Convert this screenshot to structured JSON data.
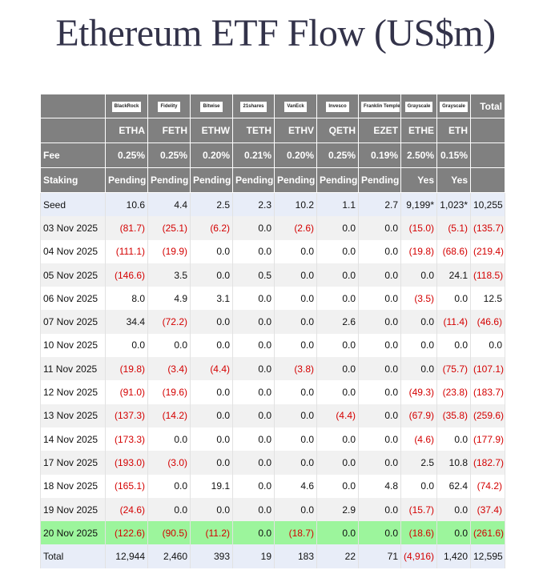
{
  "title": "Ethereum ETF Flow (US$m)",
  "table": {
    "logos": [
      "BlackRock",
      "Fidelity",
      "Bitwise",
      "21shares",
      "VanEck",
      "Invesco",
      "Franklin Templeton",
      "Grayscale",
      "Grayscale"
    ],
    "total_header": "Total",
    "tickers": [
      "ETHA",
      "FETH",
      "ETHW",
      "TETH",
      "ETHV",
      "QETH",
      "EZET",
      "ETHE",
      "ETH"
    ],
    "info_rows": [
      {
        "label": "Fee",
        "cells": [
          "0.25%",
          "0.25%",
          "0.20%",
          "0.21%",
          "0.20%",
          "0.25%",
          "0.19%",
          "2.50%",
          "0.15%"
        ]
      },
      {
        "label": "Staking",
        "cells": [
          "Pending",
          "Pending",
          "Pending",
          "Pending",
          "Pending",
          "Pending",
          "Pending",
          "Yes",
          "Yes"
        ]
      }
    ],
    "rows": [
      {
        "label": "Seed",
        "cells": [
          "10.6",
          "4.4",
          "2.5",
          "2.3",
          "10.2",
          "1.1",
          "2.7",
          "9,199*",
          "1,023*",
          "10,255"
        ]
      },
      {
        "label": "03 Nov 2025",
        "cells": [
          "(81.7)",
          "(25.1)",
          "(6.2)",
          "0.0",
          "(2.6)",
          "0.0",
          "0.0",
          "(15.0)",
          "(5.1)",
          "(135.7)"
        ]
      },
      {
        "label": "04 Nov 2025",
        "cells": [
          "(111.1)",
          "(19.9)",
          "0.0",
          "0.0",
          "0.0",
          "0.0",
          "0.0",
          "(19.8)",
          "(68.6)",
          "(219.4)"
        ]
      },
      {
        "label": "05 Nov 2025",
        "cells": [
          "(146.6)",
          "3.5",
          "0.0",
          "0.5",
          "0.0",
          "0.0",
          "0.0",
          "0.0",
          "24.1",
          "(118.5)"
        ]
      },
      {
        "label": "06 Nov 2025",
        "cells": [
          "8.0",
          "4.9",
          "3.1",
          "0.0",
          "0.0",
          "0.0",
          "0.0",
          "(3.5)",
          "0.0",
          "12.5"
        ]
      },
      {
        "label": "07 Nov 2025",
        "cells": [
          "34.4",
          "(72.2)",
          "0.0",
          "0.0",
          "0.0",
          "2.6",
          "0.0",
          "0.0",
          "(11.4)",
          "(46.6)"
        ]
      },
      {
        "label": "10 Nov 2025",
        "cells": [
          "0.0",
          "0.0",
          "0.0",
          "0.0",
          "0.0",
          "0.0",
          "0.0",
          "0.0",
          "0.0",
          "0.0"
        ]
      },
      {
        "label": "11 Nov 2025",
        "cells": [
          "(19.8)",
          "(3.4)",
          "(4.4)",
          "0.0",
          "(3.8)",
          "0.0",
          "0.0",
          "0.0",
          "(75.7)",
          "(107.1)"
        ]
      },
      {
        "label": "12 Nov 2025",
        "cells": [
          "(91.0)",
          "(19.6)",
          "0.0",
          "0.0",
          "0.0",
          "0.0",
          "0.0",
          "(49.3)",
          "(23.8)",
          "(183.7)"
        ]
      },
      {
        "label": "13 Nov 2025",
        "cells": [
          "(137.3)",
          "(14.2)",
          "0.0",
          "0.0",
          "0.0",
          "(4.4)",
          "0.0",
          "(67.9)",
          "(35.8)",
          "(259.6)"
        ]
      },
      {
        "label": "14 Nov 2025",
        "cells": [
          "(173.3)",
          "0.0",
          "0.0",
          "0.0",
          "0.0",
          "0.0",
          "0.0",
          "(4.6)",
          "0.0",
          "(177.9)"
        ]
      },
      {
        "label": "17 Nov 2025",
        "cells": [
          "(193.0)",
          "(3.0)",
          "0.0",
          "0.0",
          "0.0",
          "0.0",
          "0.0",
          "2.5",
          "10.8",
          "(182.7)"
        ]
      },
      {
        "label": "18 Nov 2025",
        "cells": [
          "(165.1)",
          "0.0",
          "19.1",
          "0.0",
          "4.6",
          "0.0",
          "4.8",
          "0.0",
          "62.4",
          "(74.2)"
        ]
      },
      {
        "label": "19 Nov 2025",
        "cells": [
          "(24.6)",
          "0.0",
          "0.0",
          "0.0",
          "0.0",
          "2.9",
          "0.0",
          "(15.7)",
          "0.0",
          "(37.4)"
        ]
      },
      {
        "label": "20 Nov 2025",
        "cells": [
          "(122.6)",
          "(90.5)",
          "(11.2)",
          "0.0",
          "(18.7)",
          "0.0",
          "0.0",
          "(18.6)",
          "0.0",
          "(261.6)"
        ]
      },
      {
        "label": "Total",
        "cells": [
          "12,944",
          "2,460",
          "393",
          "19",
          "183",
          "22",
          "71",
          "(4,916)",
          "1,420",
          "12,595"
        ]
      }
    ]
  }
}
